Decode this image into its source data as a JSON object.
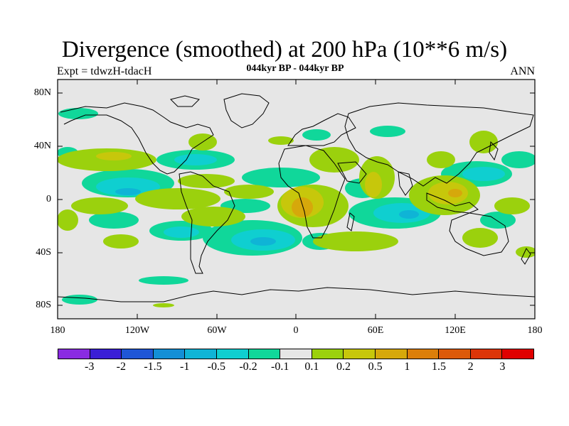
{
  "title": "Divergence (smoothed) at 200 hPa (10**6 m/s)",
  "experiment": "Expt = tdwzH-tdacH",
  "subtitle": "044kyr BP - 044kyr BP",
  "season": "ANN",
  "map": {
    "projection": "cylindrical-equidistant",
    "lon_range": [
      -180,
      180
    ],
    "lat_range": [
      -90,
      90
    ],
    "background_color": "#e6e6e6",
    "coastline_color": "#000000"
  },
  "axes": {
    "lat_ticks": [
      {
        "value": 80,
        "label": "80N"
      },
      {
        "value": 40,
        "label": "40N"
      },
      {
        "value": 0,
        "label": "0"
      },
      {
        "value": -40,
        "label": "40S"
      },
      {
        "value": -80,
        "label": "80S"
      }
    ],
    "lon_ticks": [
      {
        "value": -180,
        "label": "180"
      },
      {
        "value": -120,
        "label": "120W"
      },
      {
        "value": -60,
        "label": "60W"
      },
      {
        "value": 0,
        "label": "0"
      },
      {
        "value": 60,
        "label": "60E"
      },
      {
        "value": 120,
        "label": "120E"
      },
      {
        "value": 180,
        "label": "180"
      }
    ]
  },
  "colorbar": {
    "colors": [
      "#8a2be2",
      "#3a1fd6",
      "#1f56d6",
      "#138fd6",
      "#0fb4d6",
      "#0fcfd0",
      "#10d79a",
      "#e6e6e6",
      "#9bd10d",
      "#c7c70b",
      "#d6a80b",
      "#dc7f0a",
      "#dc5a0a",
      "#dc3508",
      "#e00000"
    ],
    "labels": [
      "-3",
      "-2",
      "-1.5",
      "-1",
      "-0.5",
      "-0.2",
      "-0.1",
      "0.1",
      "0.2",
      "0.5",
      "1",
      "1.5",
      "2",
      "3"
    ]
  }
}
